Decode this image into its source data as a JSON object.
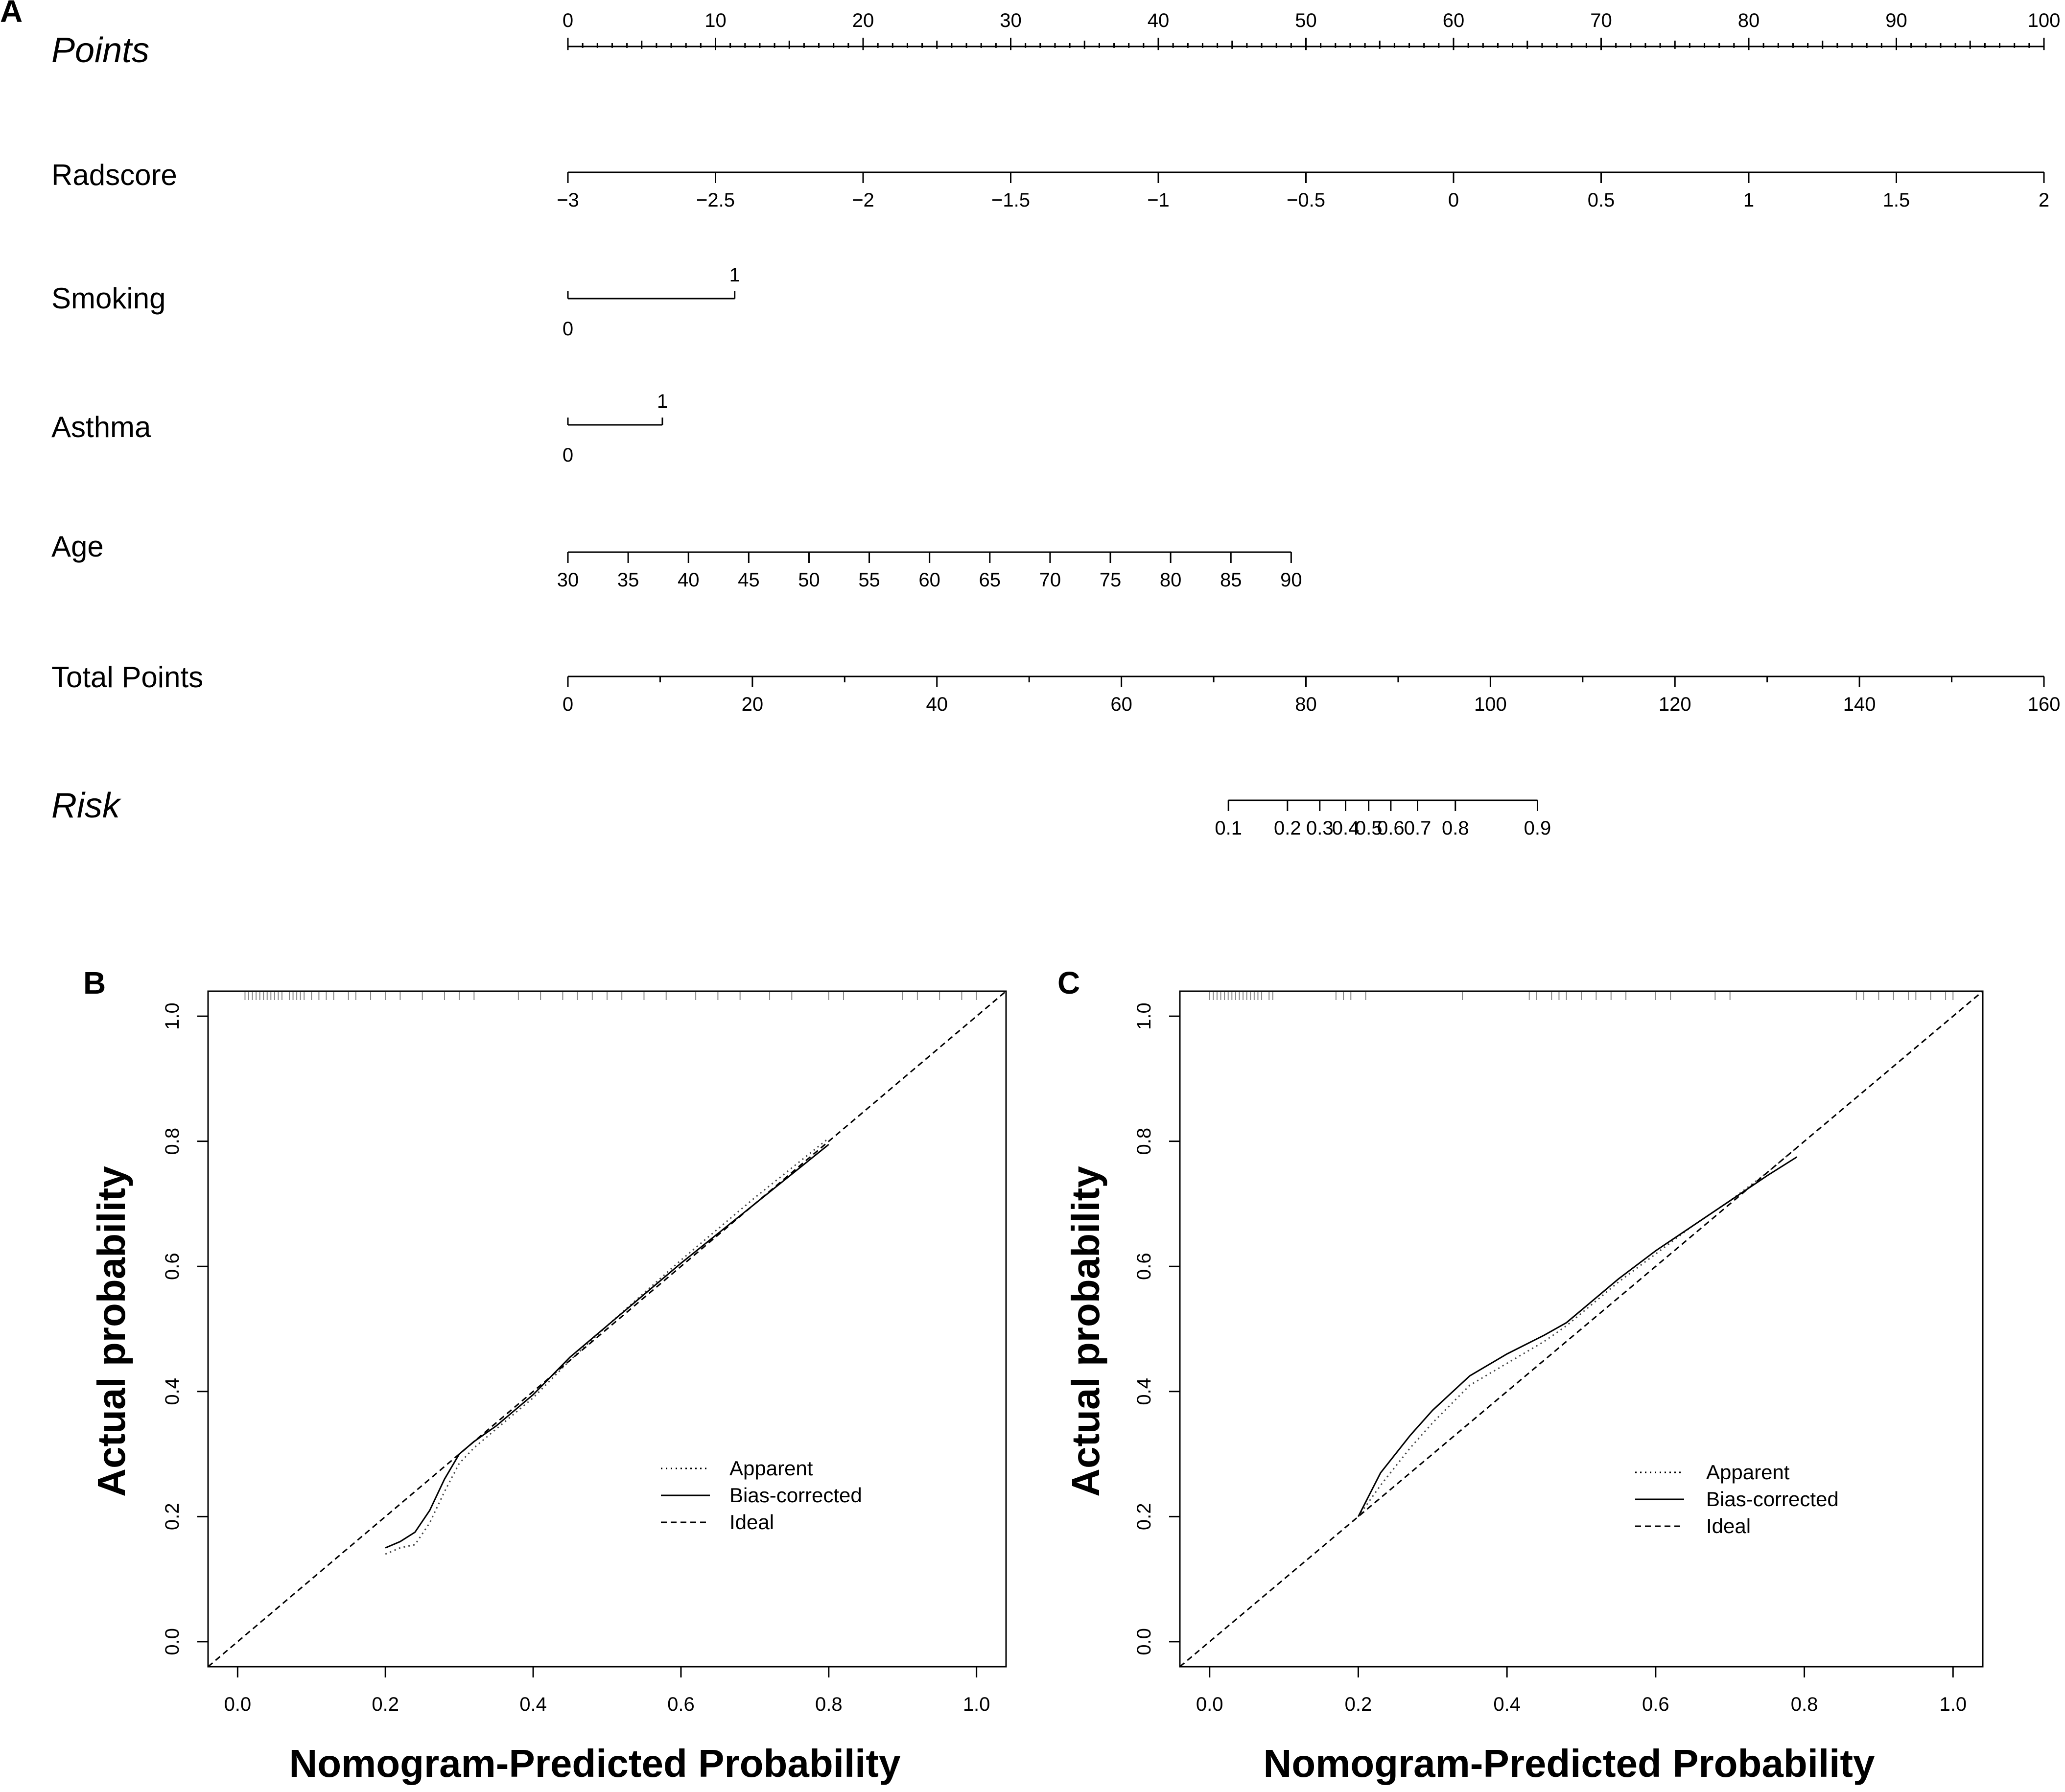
{
  "panels": {
    "a": {
      "letter": "A"
    },
    "b": {
      "letter": "B"
    },
    "c": {
      "letter": "C"
    }
  },
  "chart_data": [
    {
      "type": "nomogram",
      "panel": "A",
      "rows": [
        {
          "name": "points",
          "label": "Points",
          "italic": true,
          "style": "axis-above",
          "scale": [
            0,
            100
          ],
          "ticks": [
            0,
            10,
            20,
            30,
            40,
            50,
            60,
            70,
            80,
            90,
            100
          ],
          "minor_step": 1,
          "mid_step": 5
        },
        {
          "name": "radscore",
          "label": "Radscore",
          "style": "axis-below",
          "point_range": [
            0,
            100
          ],
          "ticks": [
            -3,
            -2.5,
            -2,
            -1.5,
            -1,
            -0.5,
            0,
            0.5,
            1,
            1.5,
            2
          ],
          "tick_labels": [
            "−3",
            "−2.5",
            "−2",
            "−1.5",
            "−1",
            "−0.5",
            "0",
            "0.5",
            "1",
            "1.5",
            "2"
          ]
        },
        {
          "name": "smoking",
          "label": "Smoking",
          "style": "categorical",
          "levels": [
            {
              "label": "0",
              "points": 0
            },
            {
              "label": "1",
              "points": 11.3
            }
          ]
        },
        {
          "name": "asthma",
          "label": "Asthma",
          "style": "categorical",
          "levels": [
            {
              "label": "0",
              "points": 0
            },
            {
              "label": "1",
              "points": 6.4
            }
          ]
        },
        {
          "name": "age",
          "label": "Age",
          "style": "axis-below",
          "point_range": [
            0,
            49
          ],
          "ticks": [
            30,
            35,
            40,
            45,
            50,
            55,
            60,
            65,
            70,
            75,
            80,
            85,
            90
          ],
          "tick_labels": [
            "30",
            "35",
            "40",
            "45",
            "50",
            "55",
            "60",
            "65",
            "70",
            "75",
            "80",
            "85",
            "90"
          ]
        },
        {
          "name": "total-points",
          "label": "Total Points",
          "style": "axis-below",
          "scale": [
            0,
            160
          ],
          "ticks": [
            0,
            20,
            40,
            60,
            80,
            100,
            120,
            140,
            160
          ],
          "minor_step": 10
        },
        {
          "name": "risk",
          "label": "Risk",
          "italic": true,
          "style": "risk",
          "ticks": [
            {
              "label": "0.1",
              "total": 71.6
            },
            {
              "label": "0.2",
              "total": 78.0
            },
            {
              "label": "0.3",
              "total": 81.5
            },
            {
              "label": "0.4",
              "total": 84.3
            },
            {
              "label": "0.5",
              "total": 86.8
            },
            {
              "label": "0.6",
              "total": 89.2
            },
            {
              "label": "0.7",
              "total": 92.1
            },
            {
              "label": "0.8",
              "total": 96.2
            },
            {
              "label": "0.9",
              "total": 105.1
            }
          ]
        }
      ]
    },
    {
      "type": "line",
      "panel": "B",
      "xlabel": "Nomogram-Predicted Probability",
      "ylabel": "Actual probability",
      "xlim": [
        -0.04,
        1.04
      ],
      "ylim": [
        -0.04,
        1.04
      ],
      "xticks": [
        0.0,
        0.2,
        0.4,
        0.6,
        0.8,
        1.0
      ],
      "yticks": [
        0.0,
        0.2,
        0.4,
        0.6,
        0.8,
        1.0
      ],
      "tick_labels": [
        "0.0",
        "0.2",
        "0.4",
        "0.6",
        "0.8",
        "1.0"
      ],
      "legend": [
        "Apparent",
        "Bias-corrected",
        "Ideal"
      ],
      "legend_position": "bottom-right",
      "series": [
        {
          "name": "Apparent",
          "style": "dotted",
          "x": [
            0.2,
            0.22,
            0.24,
            0.26,
            0.28,
            0.3,
            0.32,
            0.35,
            0.4,
            0.45,
            0.5,
            0.6,
            0.7,
            0.8
          ],
          "y": [
            0.14,
            0.15,
            0.155,
            0.19,
            0.24,
            0.285,
            0.31,
            0.34,
            0.39,
            0.45,
            0.505,
            0.61,
            0.71,
            0.805
          ]
        },
        {
          "name": "Bias-corrected",
          "style": "solid",
          "x": [
            0.2,
            0.22,
            0.24,
            0.26,
            0.28,
            0.3,
            0.32,
            0.35,
            0.4,
            0.45,
            0.5,
            0.6,
            0.7,
            0.8
          ],
          "y": [
            0.15,
            0.16,
            0.175,
            0.21,
            0.26,
            0.3,
            0.32,
            0.345,
            0.395,
            0.455,
            0.505,
            0.605,
            0.7,
            0.795
          ]
        },
        {
          "name": "Ideal",
          "style": "dashed",
          "x": [
            -0.04,
            1.04
          ],
          "y": [
            -0.04,
            1.04
          ]
        }
      ],
      "rug": [
        0.01,
        0.015,
        0.02,
        0.025,
        0.03,
        0.035,
        0.04,
        0.045,
        0.05,
        0.055,
        0.06,
        0.07,
        0.075,
        0.08,
        0.085,
        0.09,
        0.1,
        0.11,
        0.12,
        0.13,
        0.15,
        0.16,
        0.18,
        0.2,
        0.22,
        0.25,
        0.28,
        0.3,
        0.32,
        0.38,
        0.41,
        0.44,
        0.46,
        0.48,
        0.5,
        0.52,
        0.55,
        0.58,
        0.62,
        0.65,
        0.68,
        0.72,
        0.75,
        0.8,
        0.82,
        0.9,
        0.92,
        0.95,
        0.98,
        1.0
      ]
    },
    {
      "type": "line",
      "panel": "C",
      "xlabel": "Nomogram-Predicted Probability",
      "ylabel": "Actual probability",
      "xlim": [
        -0.04,
        1.04
      ],
      "ylim": [
        -0.04,
        1.04
      ],
      "xticks": [
        0.0,
        0.2,
        0.4,
        0.6,
        0.8,
        1.0
      ],
      "yticks": [
        0.0,
        0.2,
        0.4,
        0.6,
        0.8,
        1.0
      ],
      "tick_labels": [
        "0.0",
        "0.2",
        "0.4",
        "0.6",
        "0.8",
        "1.0"
      ],
      "legend": [
        "Apparent",
        "Bias-corrected",
        "Ideal"
      ],
      "legend_position": "bottom-right",
      "series": [
        {
          "name": "Apparent",
          "style": "dotted",
          "x": [
            0.2,
            0.23,
            0.27,
            0.3,
            0.35,
            0.4,
            0.45,
            0.48,
            0.5,
            0.55,
            0.6,
            0.65,
            0.7,
            0.75,
            0.79
          ],
          "y": [
            0.2,
            0.25,
            0.31,
            0.35,
            0.41,
            0.445,
            0.48,
            0.505,
            0.525,
            0.575,
            0.62,
            0.665,
            0.705,
            0.75,
            0.79
          ]
        },
        {
          "name": "Bias-corrected",
          "style": "solid",
          "x": [
            0.2,
            0.23,
            0.27,
            0.3,
            0.35,
            0.4,
            0.45,
            0.48,
            0.5,
            0.55,
            0.6,
            0.65,
            0.7,
            0.75,
            0.79
          ],
          "y": [
            0.2,
            0.27,
            0.33,
            0.37,
            0.425,
            0.46,
            0.49,
            0.51,
            0.53,
            0.58,
            0.625,
            0.665,
            0.705,
            0.745,
            0.775
          ]
        },
        {
          "name": "Ideal",
          "style": "dashed",
          "x": [
            -0.04,
            1.04
          ],
          "y": [
            -0.04,
            1.04
          ]
        }
      ],
      "rug": [
        0.0,
        0.005,
        0.01,
        0.015,
        0.02,
        0.025,
        0.03,
        0.035,
        0.04,
        0.045,
        0.05,
        0.055,
        0.06,
        0.065,
        0.07,
        0.08,
        0.085,
        0.17,
        0.18,
        0.19,
        0.21,
        0.34,
        0.43,
        0.44,
        0.46,
        0.47,
        0.48,
        0.5,
        0.52,
        0.54,
        0.56,
        0.6,
        0.62,
        0.68,
        0.7,
        0.87,
        0.88,
        0.9,
        0.92,
        0.94,
        0.95,
        0.97,
        0.99,
        1.0
      ]
    }
  ]
}
